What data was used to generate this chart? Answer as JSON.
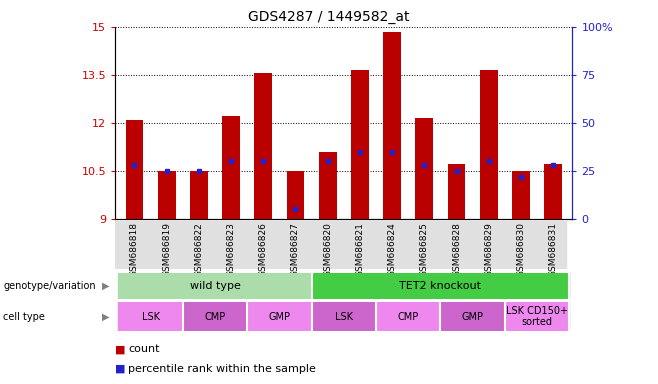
{
  "title": "GDS4287 / 1449582_at",
  "samples": [
    "GSM686818",
    "GSM686819",
    "GSM686822",
    "GSM686823",
    "GSM686826",
    "GSM686827",
    "GSM686820",
    "GSM686821",
    "GSM686824",
    "GSM686825",
    "GSM686828",
    "GSM686829",
    "GSM686830",
    "GSM686831"
  ],
  "counts": [
    12.1,
    10.5,
    10.5,
    12.2,
    13.55,
    10.5,
    11.1,
    13.65,
    14.85,
    12.15,
    10.7,
    13.65,
    10.5,
    10.7
  ],
  "percentile_vals": [
    28,
    25,
    25,
    30,
    30,
    5,
    30,
    35,
    35,
    28,
    25,
    30,
    22,
    28
  ],
  "ylim_left": [
    9,
    15
  ],
  "ylim_right": [
    0,
    100
  ],
  "yticks_left": [
    9,
    10.5,
    12,
    13.5,
    15
  ],
  "yticks_right": [
    0,
    25,
    50,
    75,
    100
  ],
  "bar_color": "#bb0000",
  "dot_color": "#2222cc",
  "genotype_groups": [
    {
      "label": "wild type",
      "start": 0,
      "end": 6,
      "color": "#aaddaa"
    },
    {
      "label": "TET2 knockout",
      "start": 6,
      "end": 14,
      "color": "#44cc44"
    }
  ],
  "cell_type_groups": [
    {
      "label": "LSK",
      "start": 0,
      "end": 2,
      "color": "#ee88ee"
    },
    {
      "label": "CMP",
      "start": 2,
      "end": 4,
      "color": "#cc66cc"
    },
    {
      "label": "GMP",
      "start": 4,
      "end": 6,
      "color": "#ee88ee"
    },
    {
      "label": "LSK",
      "start": 6,
      "end": 8,
      "color": "#cc66cc"
    },
    {
      "label": "CMP",
      "start": 8,
      "end": 10,
      "color": "#ee88ee"
    },
    {
      "label": "GMP",
      "start": 10,
      "end": 12,
      "color": "#cc66cc"
    },
    {
      "label": "LSK CD150+\nsorted",
      "start": 12,
      "end": 14,
      "color": "#ee88ee"
    }
  ],
  "legend_count_label": "count",
  "legend_percentile_label": "percentile rank within the sample",
  "base_value": 9
}
